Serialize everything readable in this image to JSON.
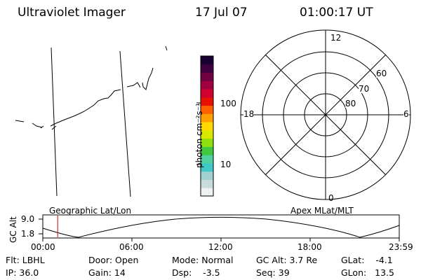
{
  "header": {
    "title": "Ultraviolet Imager",
    "date": "17 Jul 07",
    "time": "01:00:17 UT"
  },
  "colorbar": {
    "label": "photon cm⁻²s⁻¹",
    "ticks": [
      "100",
      "10"
    ],
    "colors": [
      "#eef2f2",
      "#c8dcdc",
      "#a0d0d0",
      "#40c8c8",
      "#50d0a0",
      "#40c840",
      "#90e010",
      "#d8e800",
      "#ffd800",
      "#ffa000",
      "#ff6000",
      "#e81000",
      "#d00030",
      "#a00040",
      "#700040",
      "#400040",
      "#1a0030"
    ]
  },
  "polar_plot": {
    "rings": [
      "60",
      "70",
      "80"
    ],
    "mlt_labels": {
      "top": "12",
      "bottom": "0",
      "left": "18",
      "right": "6"
    }
  },
  "timeline": {
    "left_label": "Geographic Lat/Lon",
    "right_label": "Apex MLat/MLT",
    "axis_title": "GC Alt",
    "y_ticks": [
      "9.0",
      "1.8"
    ],
    "x_ticks": [
      "00:00",
      "06:00",
      "12:00",
      "18:00",
      "23:59"
    ],
    "current_time_hours": 1.0
  },
  "status": {
    "filter": "Flt: LBHL",
    "ip": "IP: 36.0",
    "door": "Door: Open",
    "gain": "Gain: 14",
    "mode": "Mode: Normal",
    "dsp": "Dsp:    -3.5",
    "gc_alt": "GC Alt: 3.7 Re",
    "seq": "Seq: 39",
    "glat": "GLat:    -4.1",
    "glon": "GLon:   13.5"
  },
  "accent_colors": {
    "time_marker": "#cc0000"
  }
}
